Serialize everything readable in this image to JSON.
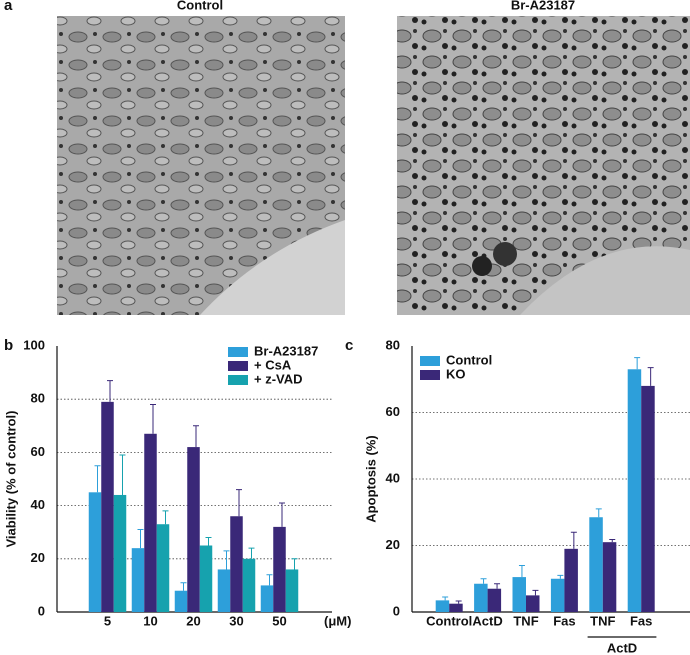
{
  "panel_a": {
    "label": "a",
    "images": [
      {
        "title": "Control"
      },
      {
        "title": "Br-A23187"
      }
    ]
  },
  "chart_data": [
    {
      "type": "bar",
      "panel_label": "b",
      "y_label": "Viability (% of control)",
      "x_unit": "(μM)",
      "categories": [
        "5",
        "10",
        "20",
        "30",
        "50"
      ],
      "series": [
        {
          "name": "Br-A23187",
          "color": "#2d9fda",
          "values": [
            45,
            24,
            8,
            16,
            10
          ],
          "errors": [
            10,
            7,
            3,
            7,
            4
          ]
        },
        {
          "name": "+ CsA",
          "color": "#3a2878",
          "values": [
            79,
            67,
            62,
            36,
            32
          ],
          "errors": [
            8,
            11,
            8,
            10,
            9
          ]
        },
        {
          "name": "+ z-VAD",
          "color": "#16a2ae",
          "values": [
            44,
            33,
            25,
            20,
            16
          ],
          "errors": [
            15,
            5,
            3,
            4,
            4
          ]
        }
      ],
      "ylim": [
        0,
        100
      ],
      "yticks": [
        0,
        20,
        40,
        60,
        80,
        100
      ],
      "grid": true,
      "legend": "top-right"
    },
    {
      "type": "bar",
      "panel_label": "c",
      "y_label": "Apoptosis (%)",
      "categories": [
        "Control",
        "ActD",
        "TNF",
        "Fas",
        "TNF",
        "Fas"
      ],
      "group_label": "ActD",
      "series": [
        {
          "name": "Control",
          "color": "#2d9fda",
          "values": [
            3.5,
            8.5,
            10.5,
            10,
            28.5,
            73
          ],
          "errors": [
            1,
            1.5,
            3.5,
            1,
            2.5,
            3.5
          ]
        },
        {
          "name": "KO",
          "color": "#3a2878",
          "values": [
            2.5,
            7,
            5,
            19,
            21,
            68
          ],
          "errors": [
            0.8,
            1.5,
            1.5,
            5,
            0.8,
            5.5
          ]
        }
      ],
      "ylim": [
        0,
        80
      ],
      "yticks": [
        0,
        20,
        40,
        60,
        80
      ],
      "grid": true,
      "legend": "top-left"
    }
  ]
}
